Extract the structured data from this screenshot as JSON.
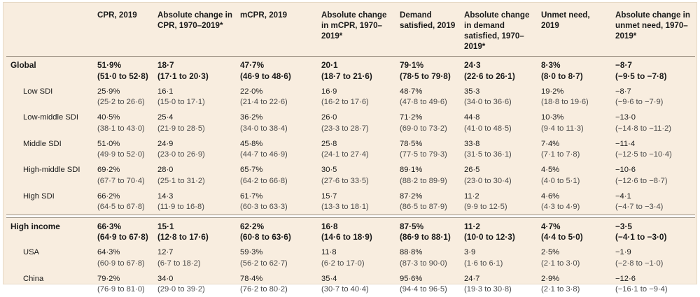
{
  "columns": [
    "",
    "CPR, 2019",
    "Absolute change in CPR, 1970–2019*",
    "mCPR, 2019",
    "Absolute change in mCPR, 1970–2019*",
    "Demand satisfied, 2019",
    "Absolute change in demand satisfied, 1970–2019*",
    "Unmet need, 2019",
    "Absolute change in unmet need, 1970–2019*"
  ],
  "rows_top": [
    {
      "label": "Global",
      "bold": true,
      "cells": [
        [
          "51·9%",
          "(51·0 to 52·8)"
        ],
        [
          "18·7",
          "(17·1 to 20·3)"
        ],
        [
          "47·7%",
          "(46·9 to 48·6)"
        ],
        [
          "20·1",
          "(18·7 to 21·6)"
        ],
        [
          "79·1%",
          "(78·5 to 79·8)"
        ],
        [
          "24·3",
          "(22·6 to 26·1)"
        ],
        [
          "8·3%",
          "(8·0 to 8·7)"
        ],
        [
          "−8·7",
          "(−9·5 to −7·8)"
        ]
      ]
    },
    {
      "label": "Low SDI",
      "bold": false,
      "cells": [
        [
          "25·9%",
          "(25·2 to 26·6)"
        ],
        [
          "16·1",
          "(15·0 to 17·1)"
        ],
        [
          "22·0%",
          "(21·4 to 22·6)"
        ],
        [
          "16·9",
          "(16·2 to 17·6)"
        ],
        [
          "48·7%",
          "(47·8 to 49·6)"
        ],
        [
          "35·3",
          "(34·0 to 36·6)"
        ],
        [
          "19·2%",
          "(18·8 to 19·6)"
        ],
        [
          "−8·7",
          "(−9·6 to −7·9)"
        ]
      ]
    },
    {
      "label": "Low-middle SDI",
      "bold": false,
      "cells": [
        [
          "40·5%",
          "(38·1 to 43·0)"
        ],
        [
          "25·4",
          "(21·9 to 28·5)"
        ],
        [
          "36·2%",
          "(34·0 to 38·4)"
        ],
        [
          "26·0",
          "(23·3 to 28·7)"
        ],
        [
          "71·2%",
          "(69·0 to 73·2)"
        ],
        [
          "44·8",
          "(41·0 to 48·5)"
        ],
        [
          "10·3%",
          "(9·4 to 11·3)"
        ],
        [
          "−13·0",
          "(−14·8 to −11·2)"
        ]
      ]
    },
    {
      "label": "Middle SDI",
      "bold": false,
      "cells": [
        [
          "51·0%",
          "(49·9 to 52·0)"
        ],
        [
          "24·9",
          "(23·0 to 26·9)"
        ],
        [
          "45·8%",
          "(44·7 to 46·9)"
        ],
        [
          "25·8",
          "(24·1 to 27·4)"
        ],
        [
          "78·5%",
          "(77·5 to 79·3)"
        ],
        [
          "33·8",
          "(31·5 to 36·1)"
        ],
        [
          "7·4%",
          "(7·1 to 7·8)"
        ],
        [
          "−11·4",
          "(−12·5 to −10·4)"
        ]
      ]
    },
    {
      "label": "High-middle SDI",
      "bold": false,
      "cells": [
        [
          "69·2%",
          "(67·7 to 70·4)"
        ],
        [
          "28·0",
          "(25·1 to 31·2)"
        ],
        [
          "65·7%",
          "(64·2 to 66·8)"
        ],
        [
          "30·5",
          "(27·6 to 33·5)"
        ],
        [
          "89·1%",
          "(88·2 to 89·9)"
        ],
        [
          "26·5",
          "(23·0 to 30·4)"
        ],
        [
          "4·5%",
          "(4·0 to 5·1)"
        ],
        [
          "−10·6",
          "(−12·6 to −8·7)"
        ]
      ]
    },
    {
      "label": "High SDI",
      "bold": false,
      "cells": [
        [
          "66·2%",
          "(64·5 to 67·8)"
        ],
        [
          "14·3",
          "(11·9 to 16·8)"
        ],
        [
          "61·7%",
          "(60·3 to 63·3)"
        ],
        [
          "15·7",
          "(13·3 to 18·1)"
        ],
        [
          "87·2%",
          "(86·5 to 87·9)"
        ],
        [
          "11·2",
          "(9·9 to 12·5)"
        ],
        [
          "4·6%",
          "(4·3 to 4·9)"
        ],
        [
          "−4·1",
          "(−4·7 to −3·4)"
        ]
      ]
    }
  ],
  "rows_bottom": [
    {
      "label": "High income",
      "bold": true,
      "cells": [
        [
          "66·3%",
          "(64·9 to 67·8)"
        ],
        [
          "15·1",
          "(12·8 to 17·6)"
        ],
        [
          "62·2%",
          "(60·8 to 63·6)"
        ],
        [
          "16·8",
          "(14·6 to 18·9)"
        ],
        [
          "87·5%",
          "(86·9 to 88·1)"
        ],
        [
          "11·2",
          "(10·0 to 12·3)"
        ],
        [
          "4·7%",
          "(4·4 to 5·0)"
        ],
        [
          "−3·5",
          "(−4·1 to −3·0)"
        ]
      ]
    },
    {
      "label": "USA",
      "bold": false,
      "cells": [
        [
          "64·3%",
          "(60·9 to 67·8)"
        ],
        [
          "12·7",
          "(6·7 to 18·2)"
        ],
        [
          "59·3%",
          "(56·2 to 62·7)"
        ],
        [
          "11·8",
          "(6·2 to 17·0)"
        ],
        [
          "88·8%",
          "(87·3 to 90·0)"
        ],
        [
          "3·9",
          "(1·6 to 6·1)"
        ],
        [
          "2·5%",
          "(2·1 to 3·0)"
        ],
        [
          "−1·9",
          "(−2·8 to −1·0)"
        ]
      ]
    },
    {
      "label": "China",
      "bold": false,
      "cells": [
        [
          "79·2%",
          "(76·9 to 81·0)"
        ],
        [
          "34·0",
          "(29·0 to 39·2)"
        ],
        [
          "78·4%",
          "(76·2 to 80·2)"
        ],
        [
          "35·4",
          "(30·7 to 40·4)"
        ],
        [
          "95·6%",
          "(94·4 to 96·5)"
        ],
        [
          "24·7",
          "(19·3 to 30·8)"
        ],
        [
          "2·9%",
          "(2·1 to 3·8)"
        ],
        [
          "−12·6",
          "(−16·1 to −9·4)"
        ]
      ]
    }
  ]
}
